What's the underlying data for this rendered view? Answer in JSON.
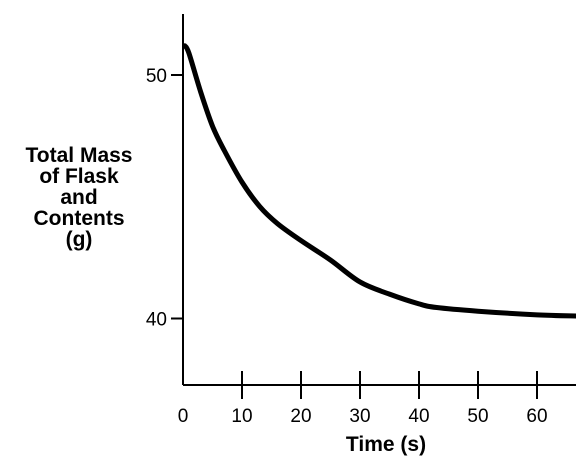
{
  "chart_data": {
    "type": "line",
    "title": "",
    "xlabel": "Time (s)",
    "ylabel_lines": [
      "Total Mass",
      "of Flask",
      "and",
      "Contents",
      "(g)"
    ],
    "x_ticks": [
      0,
      10,
      20,
      30,
      40,
      50,
      60
    ],
    "y_ticks": [
      40,
      50
    ],
    "xlim": [
      0,
      67
    ],
    "ylim": [
      37.3,
      52.6
    ],
    "grid": false,
    "series": [
      {
        "x": [
          0.3,
          1,
          3,
          5,
          7,
          10,
          13,
          16,
          20,
          25,
          30,
          35,
          40,
          43,
          50,
          60,
          67
        ],
        "y": [
          51.2,
          50.9,
          49.3,
          47.9,
          46.9,
          45.6,
          44.6,
          43.9,
          43.2,
          42.4,
          41.5,
          41.0,
          40.6,
          40.45,
          40.3,
          40.15,
          40.1
        ]
      }
    ]
  }
}
